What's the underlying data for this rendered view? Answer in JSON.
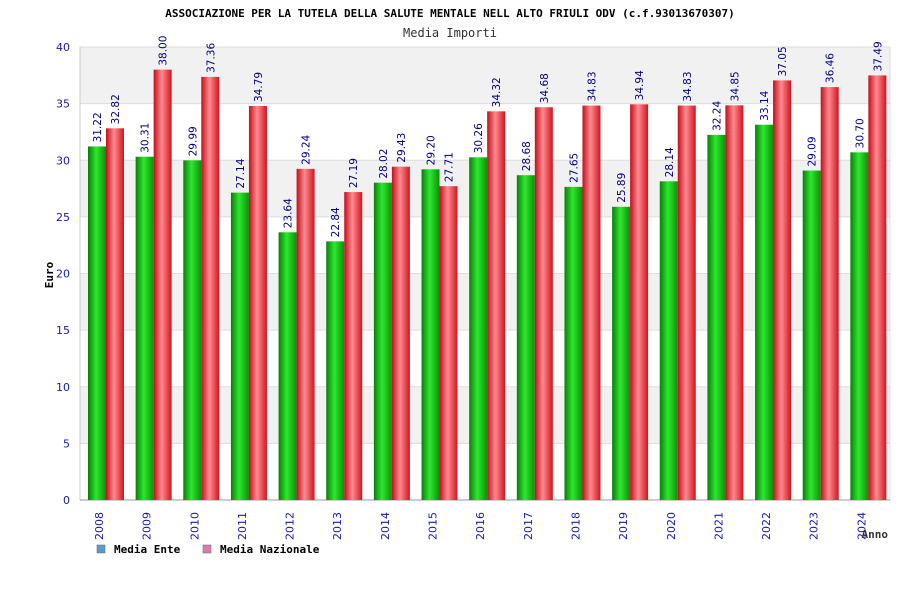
{
  "chart_data": {
    "type": "bar",
    "title": "ASSOCIAZIONE PER LA TUTELA DELLA SALUTE MENTALE NELL ALTO FRIULI ODV (c.f.93013670307)",
    "subtitle": "Media Importi",
    "xlabel": "Anno",
    "ylabel": "Euro",
    "ylim": [
      0,
      40
    ],
    "yticks": [
      0,
      5,
      10,
      15,
      20,
      25,
      30,
      35,
      40
    ],
    "grid": true,
    "legend_position": "bottom-left",
    "categories": [
      "2008",
      "2009",
      "2010",
      "2011",
      "2012",
      "2013",
      "2014",
      "2015",
      "2016",
      "2017",
      "2018",
      "2019",
      "2020",
      "2021",
      "2022",
      "2023",
      "2024"
    ],
    "series": [
      {
        "name": "Media Ente",
        "color": "#11b511",
        "legend_color": "#5b9bd5",
        "values": [
          31.22,
          30.31,
          29.99,
          27.14,
          23.64,
          22.84,
          28.02,
          29.2,
          30.26,
          28.68,
          27.65,
          25.89,
          28.14,
          32.24,
          33.14,
          29.09,
          30.7
        ],
        "labels": [
          "31.22",
          "30.31",
          "29.99",
          "27.14",
          "23.64",
          "22.84",
          "28.02",
          "29.20",
          "30.26",
          "28.68",
          "27.65",
          "25.89",
          "28.14",
          "32.24",
          "33.14",
          "29.09",
          "30.70"
        ]
      },
      {
        "name": "Media Nazionale",
        "color": "#e8202a",
        "legend_color": "#d97cb2",
        "values": [
          32.82,
          38.0,
          37.36,
          34.79,
          29.24,
          27.19,
          29.43,
          27.71,
          34.32,
          34.68,
          34.83,
          34.94,
          34.83,
          34.85,
          37.05,
          36.46,
          37.49
        ],
        "labels": [
          "32.82",
          "38.00",
          "37.36",
          "34.79",
          "29.24",
          "27.19",
          "29.43",
          "27.71",
          "34.32",
          "34.68",
          "34.83",
          "34.94",
          "34.83",
          "34.85",
          "37.05",
          "36.46",
          "37.49"
        ]
      }
    ]
  }
}
